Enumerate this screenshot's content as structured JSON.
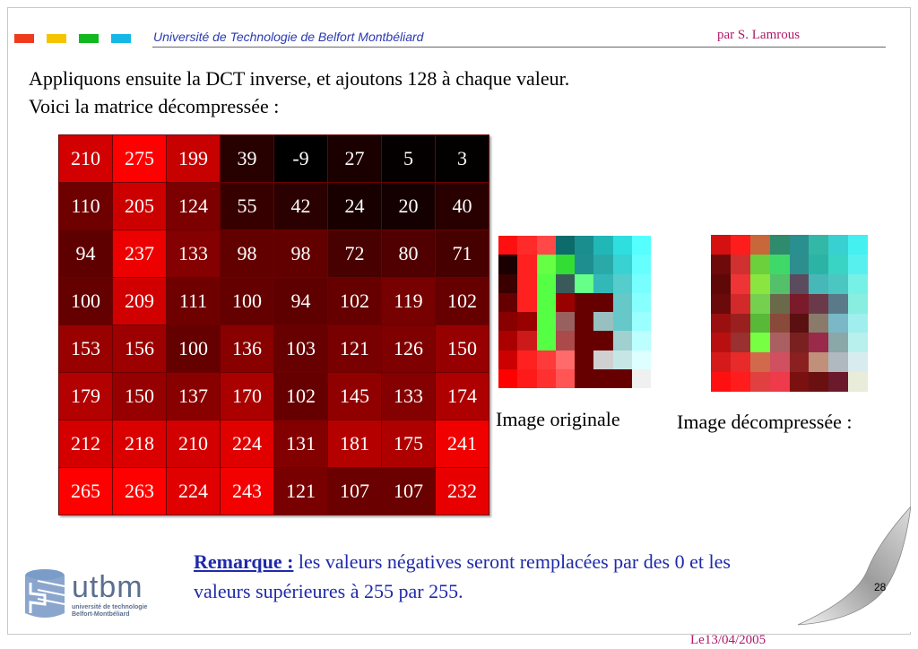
{
  "header": {
    "university": "Université de Technologie de Belfort Montbéliard",
    "author": "par S. Lamrous",
    "squares": [
      "#f03a1c",
      "#f5c400",
      "#11b81e",
      "#14b8e6"
    ]
  },
  "intro": {
    "line1": "Appliquons ensuite la DCT inverse, et ajoutons 128 à chaque valeur.",
    "line2": "Voici la matrice décompressée :"
  },
  "matrix": [
    [
      210,
      275,
      199,
      39,
      -9,
      27,
      5,
      3
    ],
    [
      110,
      205,
      124,
      55,
      42,
      24,
      20,
      40
    ],
    [
      94,
      237,
      133,
      98,
      98,
      72,
      80,
      71
    ],
    [
      100,
      209,
      111,
      100,
      94,
      102,
      119,
      102
    ],
    [
      153,
      156,
      100,
      136,
      103,
      121,
      126,
      150
    ],
    [
      179,
      150,
      137,
      170,
      102,
      145,
      133,
      174
    ],
    [
      212,
      218,
      210,
      224,
      131,
      181,
      175,
      241
    ],
    [
      265,
      263,
      224,
      243,
      121,
      107,
      107,
      232
    ]
  ],
  "images": {
    "original": [
      [
        "#ff1010",
        "#ff2a2a",
        "#ff4848",
        "#0d6b6b",
        "#1a8e8e",
        "#21b7b7",
        "#2fdede",
        "#55ffff"
      ],
      [
        "#1a0000",
        "#ff2020",
        "#66ff44",
        "#33dd33",
        "#1f8e8e",
        "#2aa9a9",
        "#39d2d2",
        "#66ffff"
      ],
      [
        "#3a0000",
        "#ff2020",
        "#55ff44",
        "#3a5a5a",
        "#66ff88",
        "#33b7b7",
        "#55cdcd",
        "#77ffff"
      ],
      [
        "#660000",
        "#ff2020",
        "#55ff44",
        "#990000",
        "#660000",
        "#660000",
        "#66c8c8",
        "#88ffff"
      ],
      [
        "#880000",
        "#990000",
        "#55ff44",
        "#996060",
        "#660000",
        "#99c0c0",
        "#66c8c8",
        "#99ffff"
      ],
      [
        "#aa0000",
        "#cc1a1a",
        "#55ff44",
        "#aa4a4a",
        "#660000",
        "#660000",
        "#a0d0d0",
        "#bbffff"
      ],
      [
        "#cc0000",
        "#ff2020",
        "#ff3a3a",
        "#ff6a6a",
        "#660000",
        "#d0d0d0",
        "#c6e6e6",
        "#ddffff"
      ],
      [
        "#ff0000",
        "#ff1a1a",
        "#ff3030",
        "#ff5555",
        "#660000",
        "#660000",
        "#660000",
        "#f0f0f0"
      ]
    ],
    "decompressed": [
      [
        "#d41010",
        "#ff1c1c",
        "#c8683a",
        "#2e8c6c",
        "#2a8f8f",
        "#33b8a8",
        "#38d0d0",
        "#44f0f0"
      ],
      [
        "#6e0a0a",
        "#d03030",
        "#6ccf3c",
        "#3fd96a",
        "#2d8e8e",
        "#2bb4a6",
        "#3ad4c4",
        "#58f0ee"
      ],
      [
        "#5e0808",
        "#ee3434",
        "#8ae540",
        "#55c06a",
        "#5a4c5c",
        "#46b8b8",
        "#4cc6c0",
        "#77f0e6"
      ],
      [
        "#6a0a0a",
        "#d22a2a",
        "#75d050",
        "#6a6a4a",
        "#7a1a2a",
        "#6a3a4a",
        "#5a7a8a",
        "#88eee0"
      ],
      [
        "#9a1010",
        "#9a2020",
        "#58b838",
        "#8a4a3a",
        "#5a1010",
        "#8a7a6a",
        "#7ab8c8",
        "#a0eeee"
      ],
      [
        "#b81010",
        "#9a3030",
        "#77ff44",
        "#aa6060",
        "#7a2020",
        "#9a2a4a",
        "#8aa8a8",
        "#b8f0ee"
      ],
      [
        "#d41a1a",
        "#e82a2a",
        "#d06a4a",
        "#d05060",
        "#8a2020",
        "#c0907a",
        "#b0b8c0",
        "#d8ecf0"
      ],
      [
        "#ff1010",
        "#ff1c1c",
        "#e04040",
        "#ee3a4a",
        "#7a1010",
        "#6a1010",
        "#6a1a2a",
        "#e8ecd8"
      ]
    ]
  },
  "captions": {
    "original": "Image originale",
    "decompressed": "Image décompressée :"
  },
  "remark": {
    "label": "Remarque :",
    "text": " les valeurs négatives seront remplacées par des 0 et les valeurs supérieures à 255 par 255."
  },
  "logo": {
    "name": "utbm",
    "sub1": "université de technologie",
    "sub2": "Belfort-Montbéliard"
  },
  "footer": {
    "page_number": "28",
    "date": "Le13/04/2005"
  }
}
